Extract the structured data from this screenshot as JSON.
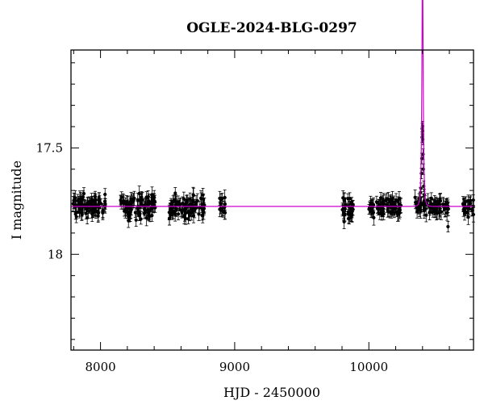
{
  "chart_data": {
    "type": "scatter",
    "title": "OGLE-2024-BLG-0297",
    "xlabel": "HJD - 2450000",
    "ylabel": "I magnitude",
    "xlim": [
      7780,
      10780
    ],
    "ylim": [
      18.45,
      17.04
    ],
    "y_inverted": true,
    "x_ticks_major": [
      8000,
      9000,
      10000
    ],
    "x_tick_labels": [
      "8000",
      "9000",
      "10000"
    ],
    "y_ticks_major": [
      17.5,
      18.0
    ],
    "y_tick_labels": [
      "17.5",
      "18"
    ],
    "baseline_mag": 17.775,
    "colors": {
      "points": "#000000",
      "model": "#cc00cc",
      "axes": "#000000"
    },
    "observing_seasons": [
      {
        "start": 7790,
        "end": 8040,
        "mean": 17.775,
        "scatter": 0.025,
        "n": 90
      },
      {
        "start": 8150,
        "end": 8410,
        "mean": 17.775,
        "scatter": 0.025,
        "n": 90
      },
      {
        "start": 8510,
        "end": 8780,
        "mean": 17.778,
        "scatter": 0.027,
        "n": 90
      },
      {
        "start": 8880,
        "end": 8930,
        "mean": 17.775,
        "scatter": 0.02,
        "n": 14
      },
      {
        "start": 9800,
        "end": 9890,
        "mean": 17.78,
        "scatter": 0.025,
        "n": 30
      },
      {
        "start": 9990,
        "end": 10240,
        "mean": 17.775,
        "scatter": 0.022,
        "n": 80
      },
      {
        "start": 10340,
        "end": 10600,
        "mean": 17.775,
        "scatter": 0.02,
        "n": 70
      },
      {
        "start": 10700,
        "end": 10780,
        "mean": 17.775,
        "scatter": 0.02,
        "n": 25
      }
    ],
    "event_points": [
      {
        "x": 10355,
        "y": 17.765
      },
      {
        "x": 10365,
        "y": 17.755
      },
      {
        "x": 10375,
        "y": 17.74
      },
      {
        "x": 10385,
        "y": 17.71
      },
      {
        "x": 10388,
        "y": 17.69
      },
      {
        "x": 10392,
        "y": 17.62
      },
      {
        "x": 10395,
        "y": 17.55
      },
      {
        "x": 10397,
        "y": 17.45
      },
      {
        "x": 10398,
        "y": 17.41
      },
      {
        "x": 10400,
        "y": 17.4
      },
      {
        "x": 10401,
        "y": 17.42
      },
      {
        "x": 10402,
        "y": 17.46
      },
      {
        "x": 10404,
        "y": 17.53
      },
      {
        "x": 10406,
        "y": 17.6
      },
      {
        "x": 10409,
        "y": 17.68
      },
      {
        "x": 10413,
        "y": 17.72
      },
      {
        "x": 10420,
        "y": 17.75
      },
      {
        "x": 10430,
        "y": 17.765
      },
      {
        "x": 10590,
        "y": 17.87
      }
    ],
    "model": {
      "type": "pspl",
      "t0": 10400,
      "u0": 0.35,
      "tE": 9,
      "baseline": 17.775
    }
  }
}
